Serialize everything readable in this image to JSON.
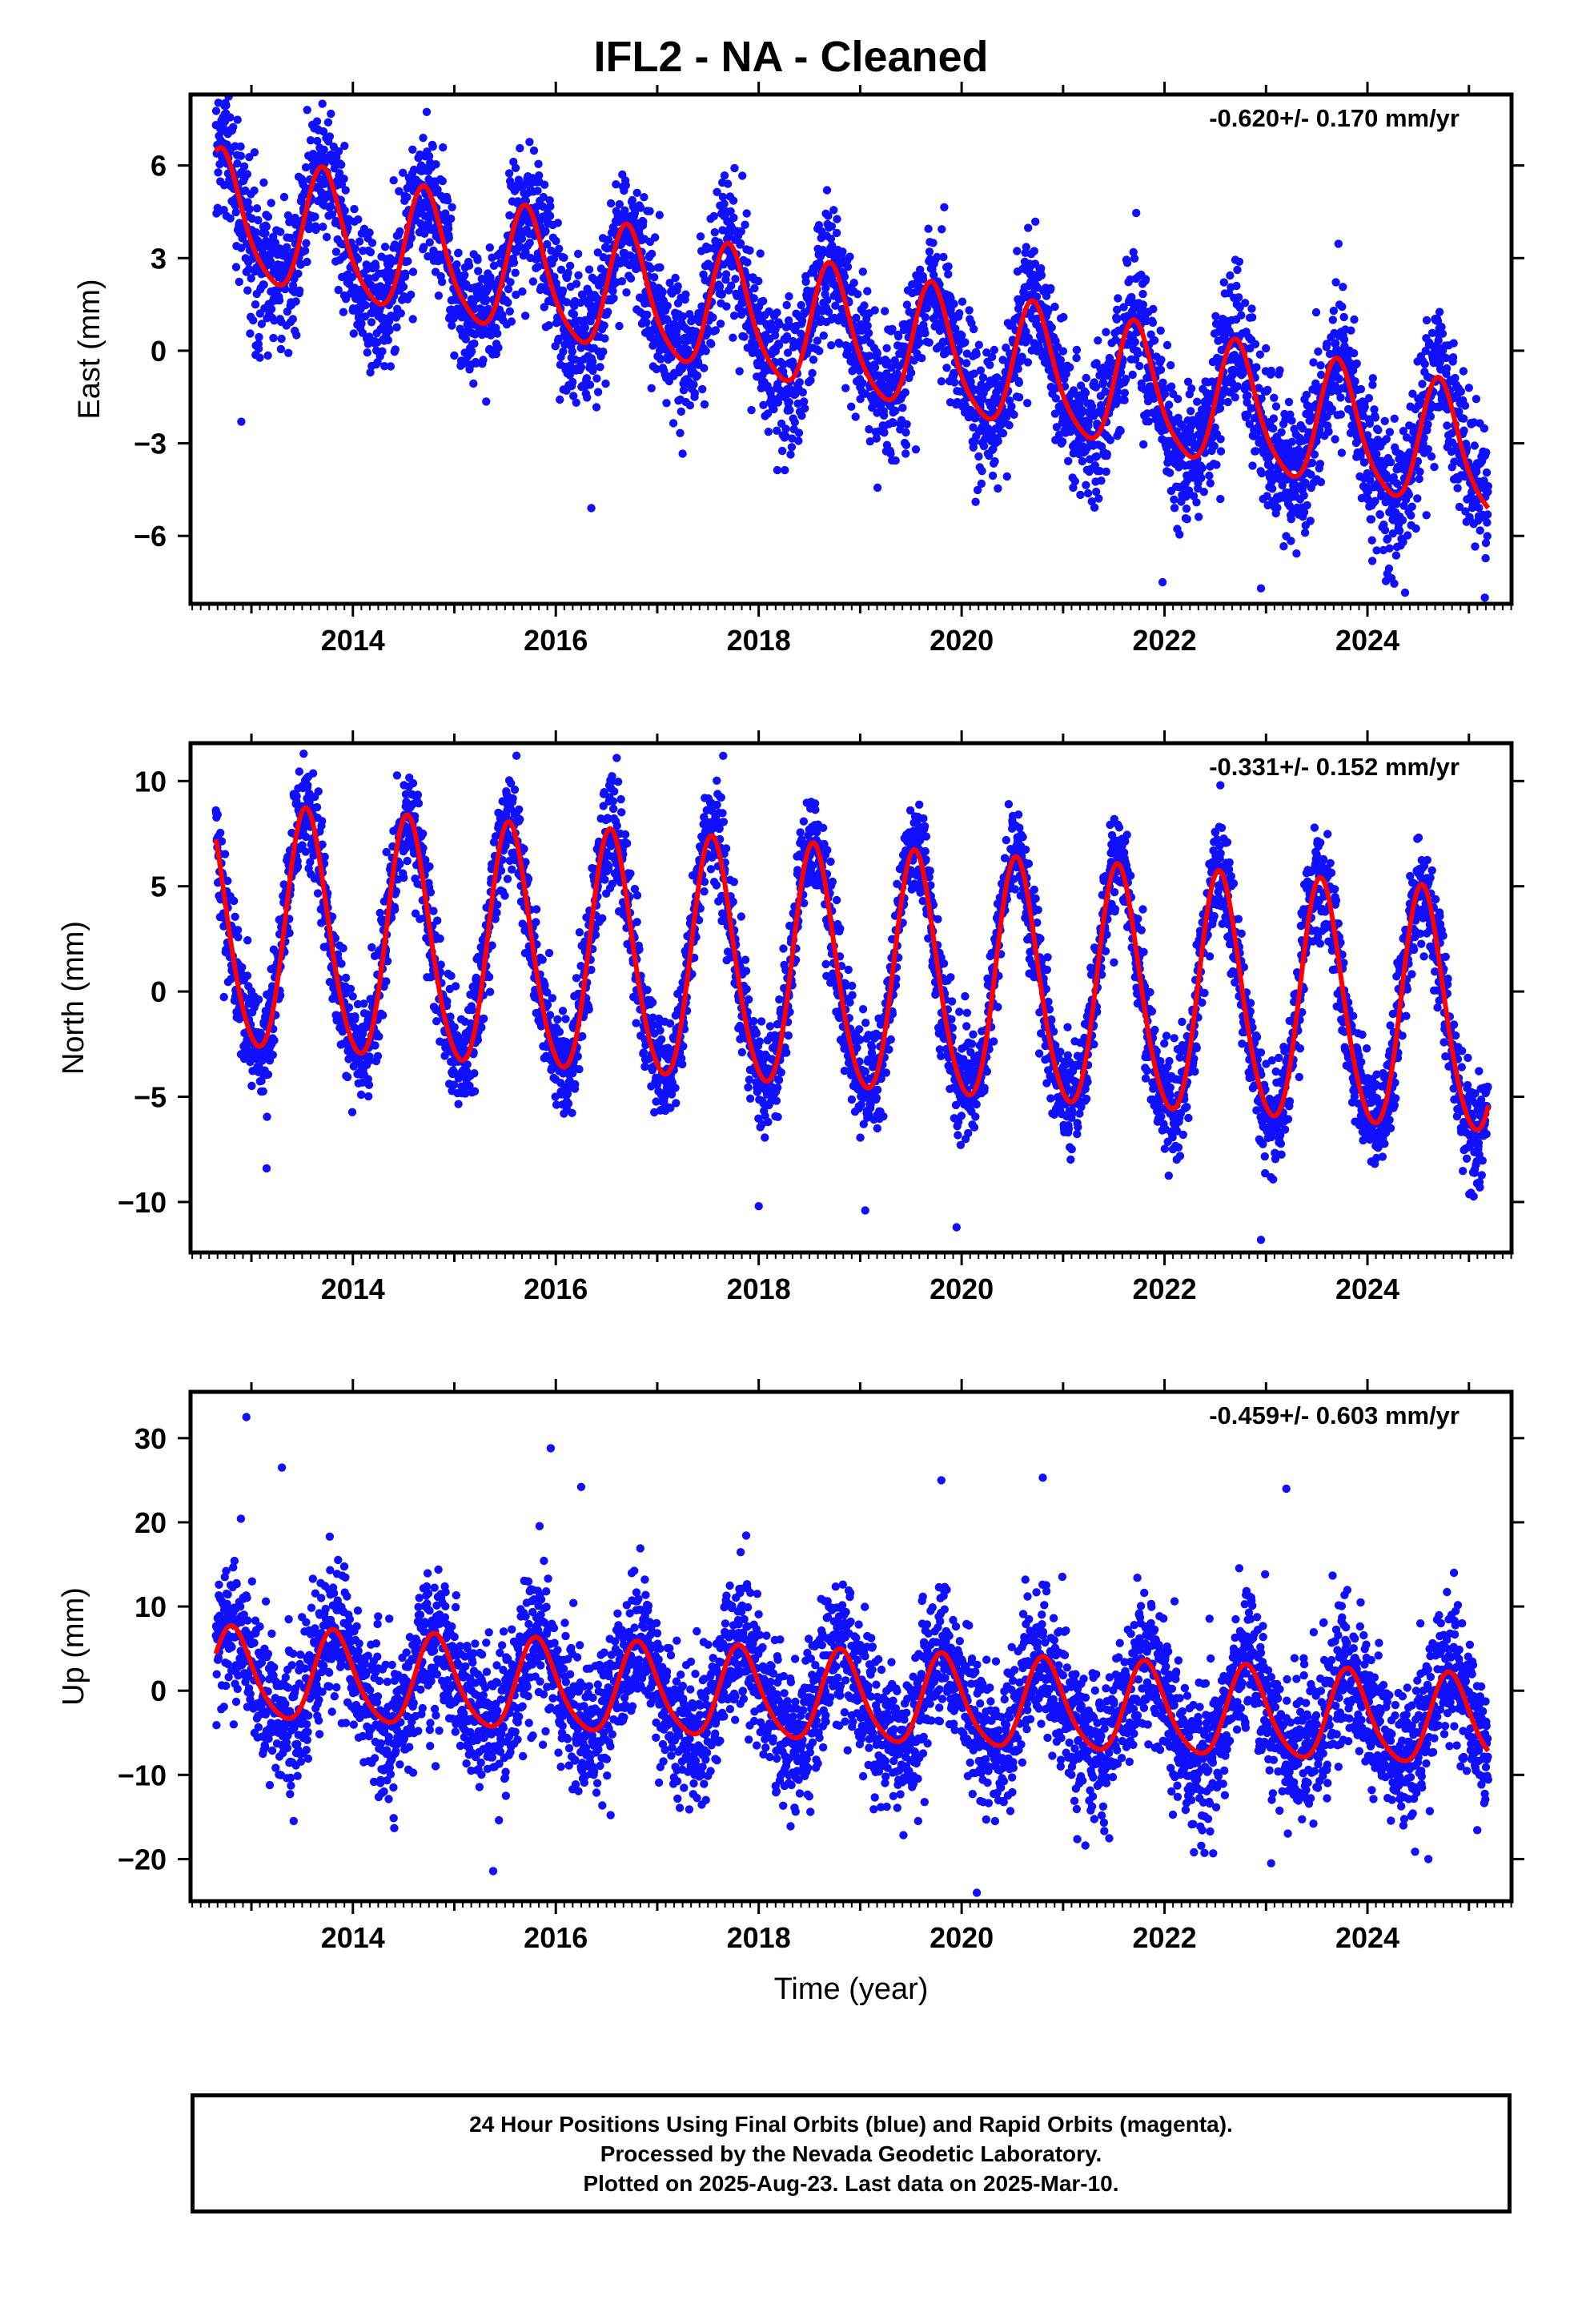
{
  "title": "IFL2  - NA - Cleaned",
  "footer": {
    "lines": [
      "24 Hour Positions Using Final Orbits (blue) and Rapid Orbits (magenta).",
      "Processed by the Nevada Geodetic Laboratory.",
      "Plotted on 2025-Aug-23. Last data on 2025-Mar-10."
    ]
  },
  "colors": {
    "points": "#1010ff",
    "fit": "#ff0000",
    "axes": "#000000"
  },
  "chart_data": [
    {
      "type": "scatter",
      "ylabel": "East (mm)",
      "xlabel": "",
      "rate_label": "-0.620+/- 0.170 mm/yr",
      "xlim": [
        2012.4,
        2025.42
      ],
      "ylim": [
        -8.2,
        8.3
      ],
      "xticks": [
        2014,
        2016,
        2018,
        2020,
        2022,
        2024
      ],
      "yticks": [
        -6,
        -3,
        0,
        3,
        6
      ],
      "x_start": 2012.65,
      "x_end": 2025.19,
      "trend": {
        "intercept_at_start": 4.3,
        "rate": -0.62
      },
      "seasonal": {
        "amplitude": 2.0,
        "peak_phase": 0.72,
        "amplitude2": 0.35
      },
      "scatter_sd": 1.1,
      "outliers": [
        [
          2013.55,
          7.8
        ],
        [
          2013.7,
          8.0
        ],
        [
          2021.98,
          -7.5
        ],
        [
          2022.95,
          -7.7
        ],
        [
          2016.35,
          -5.1
        ],
        [
          2012.9,
          -2.3
        ]
      ]
    },
    {
      "type": "scatter",
      "ylabel": "North (mm)",
      "xlabel": "",
      "rate_label": "-0.331+/- 0.152 mm/yr",
      "xlim": [
        2012.4,
        2025.42
      ],
      "ylim": [
        -12.4,
        11.8
      ],
      "xticks": [
        2014,
        2016,
        2018,
        2020,
        2022,
        2024
      ],
      "yticks": [
        -10,
        -5,
        0,
        5,
        10
      ],
      "x_start": 2012.65,
      "x_end": 2025.19,
      "trend": {
        "intercept_at_start": 2.8,
        "rate": -0.331
      },
      "seasonal": {
        "amplitude": 5.7,
        "peak_phase": 0.55,
        "amplitude2": 0.6
      },
      "scatter_sd": 1.25,
      "outliers": [
        [
          2013.15,
          -8.4
        ],
        [
          2017.65,
          11.2
        ],
        [
          2016.6,
          11.1
        ],
        [
          2018.0,
          -10.2
        ],
        [
          2019.05,
          -10.4
        ],
        [
          2019.95,
          -11.2
        ],
        [
          2022.95,
          -11.8
        ],
        [
          2022.55,
          9.8
        ]
      ]
    },
    {
      "type": "scatter",
      "ylabel": "Up (mm)",
      "xlabel": "Time (year)",
      "rate_label": "-0.459+/- 0.603 mm/yr",
      "xlim": [
        2012.4,
        2025.42
      ],
      "ylim": [
        -25,
        35.5
      ],
      "xticks": [
        2014,
        2016,
        2018,
        2020,
        2022,
        2024
      ],
      "yticks": [
        -20,
        -10,
        0,
        10,
        20,
        30
      ],
      "x_start": 2012.65,
      "x_end": 2025.19,
      "trend": {
        "intercept_at_start": 1.8,
        "rate": -0.459
      },
      "seasonal": {
        "amplitude": 5.3,
        "peak_phase": 0.82,
        "amplitude2": 0.8
      },
      "scatter_sd": 4.3,
      "outliers": [
        [
          2012.95,
          32.5
        ],
        [
          2015.95,
          28.8
        ],
        [
          2016.25,
          24.2
        ],
        [
          2019.8,
          25.0
        ],
        [
          2020.8,
          25.3
        ],
        [
          2023.2,
          24.0
        ],
        [
          2020.15,
          -24.0
        ],
        [
          2013.3,
          26.5
        ],
        [
          2023.05,
          -20.5
        ],
        [
          2024.6,
          -20.0
        ]
      ]
    }
  ]
}
